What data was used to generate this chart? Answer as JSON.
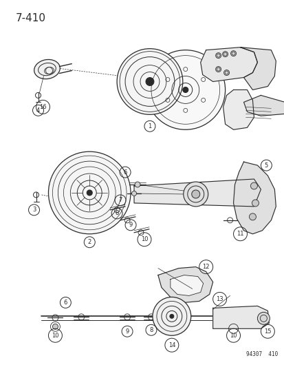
{
  "page_num": "7-410",
  "part_num": "94307  410",
  "bg_color": "#ffffff",
  "line_color": "#2a2a2a",
  "figsize": [
    4.14,
    5.33
  ],
  "dpi": 100
}
